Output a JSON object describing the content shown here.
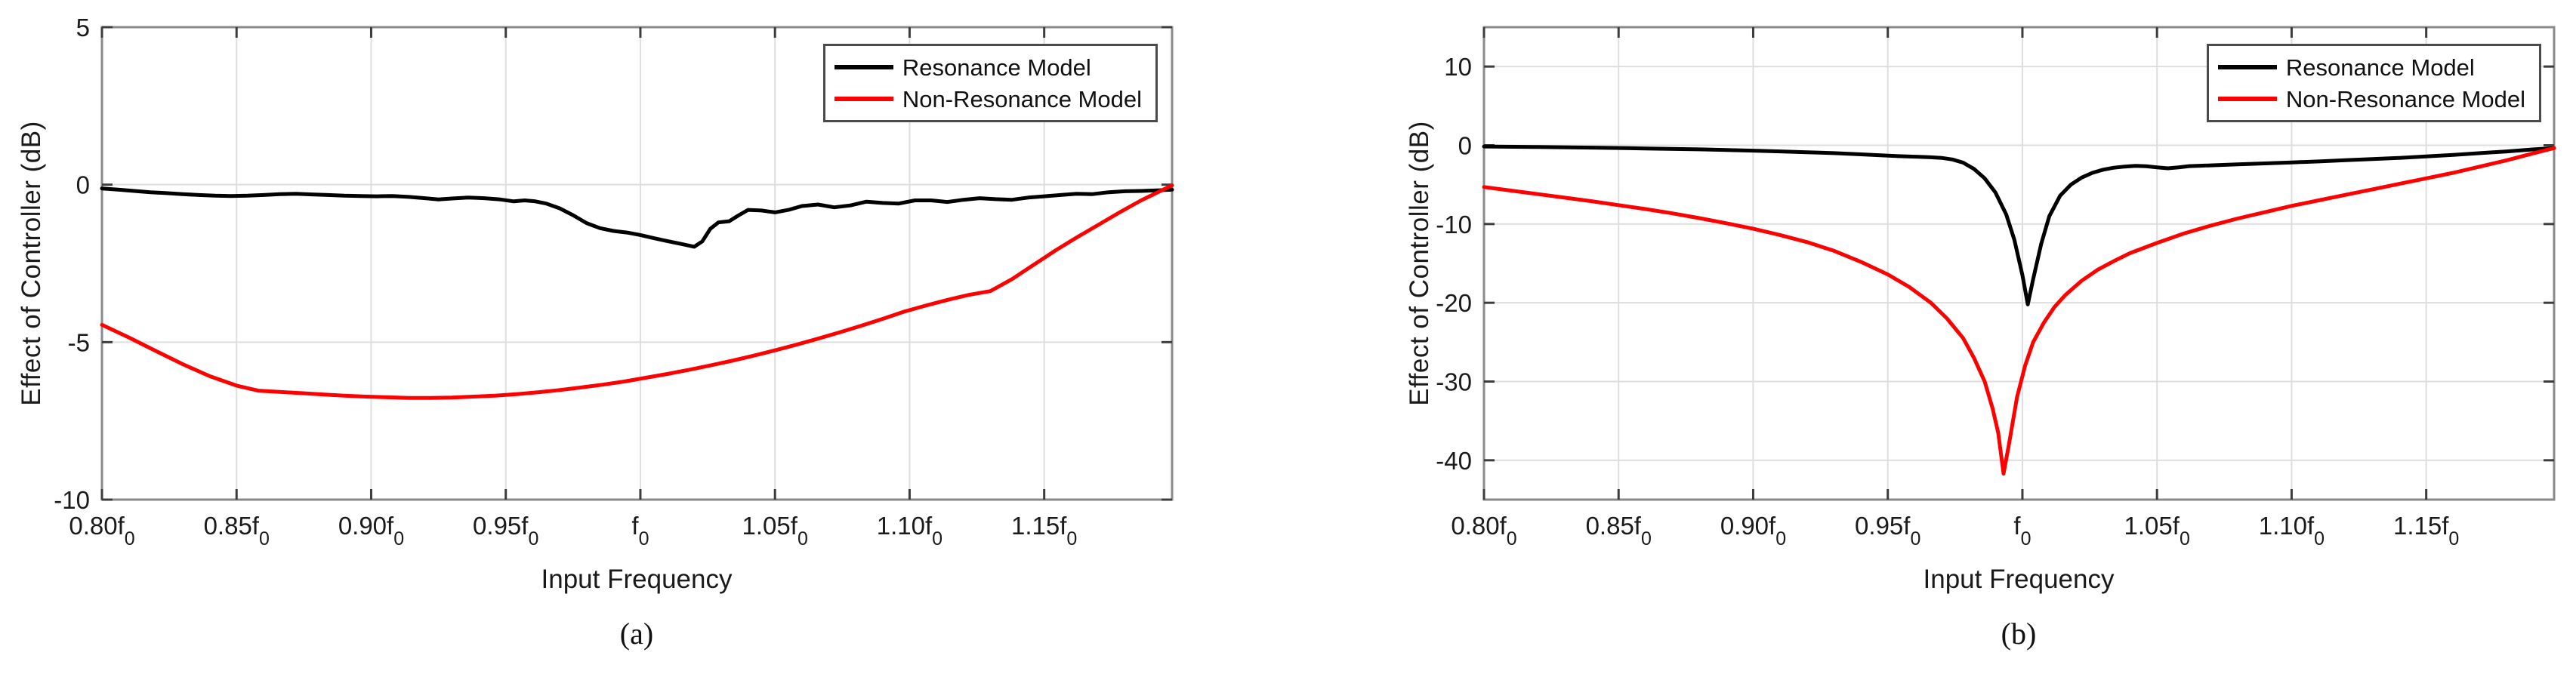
{
  "figure": {
    "background": "#ffffff"
  },
  "chart_data": [
    {
      "id": "a",
      "type": "line",
      "caption": "(a)",
      "xlabel": "Input Frequency",
      "ylabel": "Effect of Controller (dB)",
      "xlim": [
        0.8,
        1.1975
      ],
      "ylim": [
        -10,
        5
      ],
      "grid": true,
      "yticks": [
        5,
        0,
        -5,
        -10
      ],
      "xticks": [
        {
          "value": 0.8,
          "label": "0.80f_0"
        },
        {
          "value": 0.85,
          "label": "0.85f_0"
        },
        {
          "value": 0.9,
          "label": "0.90f_0"
        },
        {
          "value": 0.95,
          "label": "0.95f_0"
        },
        {
          "value": 1.0,
          "label": "f_0"
        },
        {
          "value": 1.05,
          "label": "1.05f_0"
        },
        {
          "value": 1.1,
          "label": "1.10f_0"
        },
        {
          "value": 1.15,
          "label": "1.15f_0"
        }
      ],
      "legend": {
        "position": "top-right",
        "entries": [
          {
            "label": "Resonance Model",
            "color": "#000000"
          },
          {
            "label": "Non-Resonance Model",
            "color": "#ff0000"
          }
        ]
      },
      "series": [
        {
          "name": "Resonance Model",
          "color": "#000000",
          "points": [
            [
              0.8,
              -0.12
            ],
            [
              0.806,
              -0.16
            ],
            [
              0.812,
              -0.2
            ],
            [
              0.818,
              -0.24
            ],
            [
              0.824,
              -0.27
            ],
            [
              0.83,
              -0.3
            ],
            [
              0.836,
              -0.33
            ],
            [
              0.842,
              -0.35
            ],
            [
              0.848,
              -0.36
            ],
            [
              0.854,
              -0.35
            ],
            [
              0.86,
              -0.33
            ],
            [
              0.866,
              -0.3
            ],
            [
              0.872,
              -0.29
            ],
            [
              0.878,
              -0.31
            ],
            [
              0.884,
              -0.33
            ],
            [
              0.89,
              -0.35
            ],
            [
              0.896,
              -0.36
            ],
            [
              0.902,
              -0.37
            ],
            [
              0.908,
              -0.36
            ],
            [
              0.914,
              -0.39
            ],
            [
              0.92,
              -0.43
            ],
            [
              0.925,
              -0.47
            ],
            [
              0.93,
              -0.44
            ],
            [
              0.936,
              -0.41
            ],
            [
              0.942,
              -0.43
            ],
            [
              0.948,
              -0.47
            ],
            [
              0.953,
              -0.53
            ],
            [
              0.957,
              -0.5
            ],
            [
              0.961,
              -0.53
            ],
            [
              0.965,
              -0.6
            ],
            [
              0.97,
              -0.75
            ],
            [
              0.975,
              -0.97
            ],
            [
              0.98,
              -1.22
            ],
            [
              0.985,
              -1.38
            ],
            [
              0.99,
              -1.47
            ],
            [
              0.995,
              -1.52
            ],
            [
              1.0,
              -1.6
            ],
            [
              1.005,
              -1.7
            ],
            [
              1.01,
              -1.79
            ],
            [
              1.015,
              -1.88
            ],
            [
              1.02,
              -1.97
            ],
            [
              1.023,
              -1.8
            ],
            [
              1.026,
              -1.4
            ],
            [
              1.029,
              -1.2
            ],
            [
              1.033,
              -1.16
            ],
            [
              1.036,
              -1.0
            ],
            [
              1.04,
              -0.8
            ],
            [
              1.045,
              -0.82
            ],
            [
              1.05,
              -0.88
            ],
            [
              1.055,
              -0.8
            ],
            [
              1.06,
              -0.68
            ],
            [
              1.066,
              -0.63
            ],
            [
              1.072,
              -0.72
            ],
            [
              1.078,
              -0.66
            ],
            [
              1.084,
              -0.54
            ],
            [
              1.09,
              -0.58
            ],
            [
              1.096,
              -0.6
            ],
            [
              1.102,
              -0.5
            ],
            [
              1.108,
              -0.5
            ],
            [
              1.114,
              -0.55
            ],
            [
              1.12,
              -0.48
            ],
            [
              1.126,
              -0.43
            ],
            [
              1.132,
              -0.46
            ],
            [
              1.138,
              -0.48
            ],
            [
              1.144,
              -0.41
            ],
            [
              1.15,
              -0.37
            ],
            [
              1.156,
              -0.33
            ],
            [
              1.162,
              -0.29
            ],
            [
              1.168,
              -0.3
            ],
            [
              1.174,
              -0.24
            ],
            [
              1.18,
              -0.21
            ],
            [
              1.186,
              -0.2
            ],
            [
              1.192,
              -0.18
            ],
            [
              1.1975,
              -0.16
            ]
          ]
        },
        {
          "name": "Non-Resonance Model",
          "color": "#ff0000",
          "points": [
            [
              0.8,
              -4.45
            ],
            [
              0.81,
              -4.85
            ],
            [
              0.82,
              -5.28
            ],
            [
              0.83,
              -5.7
            ],
            [
              0.84,
              -6.08
            ],
            [
              0.85,
              -6.38
            ],
            [
              0.858,
              -6.54
            ],
            [
              0.866,
              -6.58
            ],
            [
              0.874,
              -6.62
            ],
            [
              0.882,
              -6.66
            ],
            [
              0.89,
              -6.7
            ],
            [
              0.898,
              -6.73
            ],
            [
              0.906,
              -6.75
            ],
            [
              0.914,
              -6.77
            ],
            [
              0.922,
              -6.77
            ],
            [
              0.93,
              -6.76
            ],
            [
              0.938,
              -6.73
            ],
            [
              0.946,
              -6.7
            ],
            [
              0.954,
              -6.65
            ],
            [
              0.962,
              -6.59
            ],
            [
              0.97,
              -6.52
            ],
            [
              0.978,
              -6.44
            ],
            [
              0.986,
              -6.35
            ],
            [
              0.994,
              -6.25
            ],
            [
              1.002,
              -6.13
            ],
            [
              1.01,
              -6.01
            ],
            [
              1.018,
              -5.88
            ],
            [
              1.026,
              -5.74
            ],
            [
              1.034,
              -5.59
            ],
            [
              1.042,
              -5.43
            ],
            [
              1.05,
              -5.26
            ],
            [
              1.058,
              -5.08
            ],
            [
              1.066,
              -4.89
            ],
            [
              1.074,
              -4.69
            ],
            [
              1.082,
              -4.48
            ],
            [
              1.09,
              -4.26
            ],
            [
              1.098,
              -4.03
            ],
            [
              1.106,
              -3.84
            ],
            [
              1.114,
              -3.66
            ],
            [
              1.122,
              -3.5
            ],
            [
              1.13,
              -3.38
            ],
            [
              1.138,
              -3.0
            ],
            [
              1.146,
              -2.55
            ],
            [
              1.154,
              -2.1
            ],
            [
              1.162,
              -1.68
            ],
            [
              1.17,
              -1.28
            ],
            [
              1.178,
              -0.88
            ],
            [
              1.186,
              -0.5
            ],
            [
              1.192,
              -0.25
            ],
            [
              1.1975,
              -0.02
            ]
          ]
        }
      ]
    },
    {
      "id": "b",
      "type": "line",
      "caption": "(b)",
      "xlabel": "Input Frequency",
      "ylabel": "Effect of Controller (dB)",
      "xlim": [
        0.8,
        1.1975
      ],
      "ylim": [
        -45,
        15
      ],
      "grid": true,
      "yticks": [
        10,
        0,
        -10,
        -20,
        -30,
        -40
      ],
      "xticks": [
        {
          "value": 0.8,
          "label": "0.80f_0"
        },
        {
          "value": 0.85,
          "label": "0.85f_0"
        },
        {
          "value": 0.9,
          "label": "0.90f_0"
        },
        {
          "value": 0.95,
          "label": "0.95f_0"
        },
        {
          "value": 1.0,
          "label": "f_0"
        },
        {
          "value": 1.05,
          "label": "1.05f_0"
        },
        {
          "value": 1.1,
          "label": "1.10f_0"
        },
        {
          "value": 1.15,
          "label": "1.15f_0"
        }
      ],
      "legend": {
        "position": "top-right",
        "entries": [
          {
            "label": "Resonance Model",
            "color": "#000000"
          },
          {
            "label": "Non-Resonance Model",
            "color": "#ff0000"
          }
        ]
      },
      "series": [
        {
          "name": "Resonance Model",
          "color": "#000000",
          "points": [
            [
              0.8,
              -0.15
            ],
            [
              0.82,
              -0.22
            ],
            [
              0.84,
              -0.3
            ],
            [
              0.86,
              -0.4
            ],
            [
              0.88,
              -0.52
            ],
            [
              0.9,
              -0.68
            ],
            [
              0.91,
              -0.78
            ],
            [
              0.92,
              -0.88
            ],
            [
              0.93,
              -1.0
            ],
            [
              0.94,
              -1.15
            ],
            [
              0.948,
              -1.28
            ],
            [
              0.954,
              -1.38
            ],
            [
              0.96,
              -1.45
            ],
            [
              0.966,
              -1.52
            ],
            [
              0.97,
              -1.6
            ],
            [
              0.974,
              -1.8
            ],
            [
              0.978,
              -2.2
            ],
            [
              0.982,
              -3.0
            ],
            [
              0.986,
              -4.2
            ],
            [
              0.99,
              -6.0
            ],
            [
              0.994,
              -8.8
            ],
            [
              0.997,
              -12.0
            ],
            [
              1.0,
              -16.5
            ],
            [
              1.002,
              -20.2
            ],
            [
              1.004,
              -17.0
            ],
            [
              1.007,
              -12.5
            ],
            [
              1.01,
              -9.0
            ],
            [
              1.014,
              -6.4
            ],
            [
              1.018,
              -5.0
            ],
            [
              1.022,
              -4.1
            ],
            [
              1.026,
              -3.5
            ],
            [
              1.03,
              -3.1
            ],
            [
              1.034,
              -2.85
            ],
            [
              1.038,
              -2.7
            ],
            [
              1.042,
              -2.62
            ],
            [
              1.046,
              -2.66
            ],
            [
              1.05,
              -2.8
            ],
            [
              1.054,
              -2.92
            ],
            [
              1.058,
              -2.8
            ],
            [
              1.062,
              -2.65
            ],
            [
              1.066,
              -2.6
            ],
            [
              1.07,
              -2.55
            ],
            [
              1.08,
              -2.42
            ],
            [
              1.09,
              -2.3
            ],
            [
              1.1,
              -2.18
            ],
            [
              1.11,
              -2.05
            ],
            [
              1.12,
              -1.9
            ],
            [
              1.13,
              -1.75
            ],
            [
              1.14,
              -1.6
            ],
            [
              1.15,
              -1.42
            ],
            [
              1.16,
              -1.22
            ],
            [
              1.17,
              -1.0
            ],
            [
              1.18,
              -0.78
            ],
            [
              1.19,
              -0.52
            ],
            [
              1.1975,
              -0.35
            ]
          ]
        },
        {
          "name": "Non-Resonance Model",
          "color": "#ff0000",
          "points": [
            [
              0.8,
              -5.3
            ],
            [
              0.81,
              -5.75
            ],
            [
              0.82,
              -6.2
            ],
            [
              0.83,
              -6.65
            ],
            [
              0.84,
              -7.1
            ],
            [
              0.85,
              -7.6
            ],
            [
              0.86,
              -8.1
            ],
            [
              0.87,
              -8.65
            ],
            [
              0.88,
              -9.25
            ],
            [
              0.89,
              -9.9
            ],
            [
              0.9,
              -10.6
            ],
            [
              0.91,
              -11.4
            ],
            [
              0.92,
              -12.3
            ],
            [
              0.93,
              -13.4
            ],
            [
              0.94,
              -14.8
            ],
            [
              0.95,
              -16.4
            ],
            [
              0.958,
              -18.0
            ],
            [
              0.966,
              -20.0
            ],
            [
              0.972,
              -22.0
            ],
            [
              0.978,
              -24.5
            ],
            [
              0.982,
              -27.0
            ],
            [
              0.986,
              -30.0
            ],
            [
              0.989,
              -33.5
            ],
            [
              0.991,
              -36.5
            ],
            [
              0.993,
              -41.7
            ],
            [
              0.995,
              -38.0
            ],
            [
              0.998,
              -32.0
            ],
            [
              1.001,
              -28.0
            ],
            [
              1.004,
              -25.0
            ],
            [
              1.008,
              -22.5
            ],
            [
              1.012,
              -20.5
            ],
            [
              1.016,
              -19.0
            ],
            [
              1.022,
              -17.2
            ],
            [
              1.028,
              -15.8
            ],
            [
              1.034,
              -14.7
            ],
            [
              1.04,
              -13.7
            ],
            [
              1.05,
              -12.4
            ],
            [
              1.06,
              -11.2
            ],
            [
              1.07,
              -10.2
            ],
            [
              1.08,
              -9.3
            ],
            [
              1.09,
              -8.5
            ],
            [
              1.1,
              -7.7
            ],
            [
              1.11,
              -7.0
            ],
            [
              1.12,
              -6.3
            ],
            [
              1.13,
              -5.6
            ],
            [
              1.14,
              -4.9
            ],
            [
              1.15,
              -4.2
            ],
            [
              1.16,
              -3.5
            ],
            [
              1.17,
              -2.7
            ],
            [
              1.18,
              -1.9
            ],
            [
              1.19,
              -1.0
            ],
            [
              1.1975,
              -0.35
            ]
          ]
        }
      ]
    }
  ],
  "style": {
    "grid_color": "#dedede",
    "box_color": "#8a8a8a",
    "tick_color": "#3d3d3d",
    "line_width": 5
  }
}
